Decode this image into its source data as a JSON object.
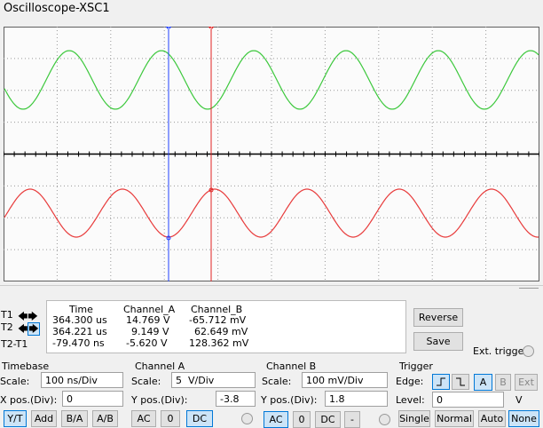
{
  "window": {
    "title": "Oscilloscope-XSC1"
  },
  "cursor_markers": [
    "1",
    "2"
  ],
  "readout": {
    "headers": [
      "Time",
      "Channel_A",
      "Channel_B"
    ],
    "rows": [
      {
        "label": "T1",
        "values": [
          "364.300 us",
          "14.769 V",
          "-65.712 mV"
        ]
      },
      {
        "label": "T2",
        "values": [
          "364.221 us",
          "9.149 V",
          "62.649 mV"
        ]
      },
      {
        "label": "T2-T1",
        "values": [
          "-79.470 ns",
          "-5.620 V",
          "128.362 mV"
        ]
      }
    ]
  },
  "buttons": {
    "reverse": "Reverse",
    "save": "Save",
    "ext_trigger": "Ext. trigger"
  },
  "timebase": {
    "title": "Timebase",
    "scale_label": "Scale:",
    "scale": "100 ns/Div",
    "xpos_label": "X pos.(Div):",
    "xpos": "0",
    "modes": [
      "Y/T",
      "Add",
      "B/A",
      "A/B"
    ]
  },
  "channel_a": {
    "title": "Channel A",
    "scale_label": "Scale:",
    "scale": "5  V/Div",
    "ypos_label": "Y pos.(Div):",
    "ypos": "-3.8",
    "coupling": [
      "AC",
      "0",
      "DC"
    ]
  },
  "channel_b": {
    "title": "Channel B",
    "scale_label": "Scale:",
    "scale": "100 mV/Div",
    "ypos_label": "Y pos.(Div):",
    "ypos": "1.8",
    "coupling": [
      "AC",
      "0",
      "DC",
      "-"
    ]
  },
  "trigger": {
    "title": "Trigger",
    "edge_label": "Edge:",
    "edge_buttons": [
      "A",
      "B",
      "Ext"
    ],
    "level_label": "Level:",
    "level": "0",
    "level_unit": "V",
    "types": [
      "Single",
      "Normal",
      "Auto",
      "None"
    ]
  }
}
